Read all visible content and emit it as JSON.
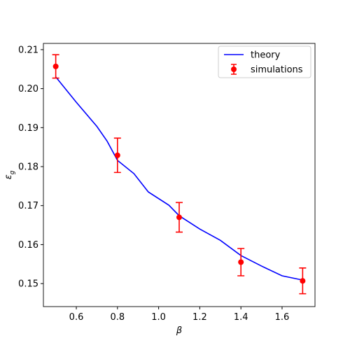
{
  "chart_data": {
    "type": "line-errorbar",
    "xlabel": "β",
    "ylabel": "ε",
    "ylabel_sub": "g",
    "xlim": [
      0.44,
      1.76
    ],
    "ylim": [
      0.1441,
      0.2116
    ],
    "xticks": [
      0.6,
      0.8,
      {
        "value": 1.0,
        "label": "1.0"
      },
      1.2,
      1.4,
      1.6
    ],
    "yticks": [
      0.15,
      0.16,
      0.17,
      0.18,
      0.19,
      {
        "value": 0.2,
        "label": "0.20"
      },
      0.21
    ],
    "legend": "upper right",
    "series": [
      {
        "name": "theory",
        "kind": "line",
        "color": "#0000ff",
        "x": [
          0.5,
          0.6,
          0.7,
          0.75,
          0.8,
          0.88,
          0.95,
          1.05,
          1.1,
          1.2,
          1.3,
          1.4,
          1.5,
          1.6,
          1.7
        ],
        "values": [
          0.203,
          0.1965,
          0.1903,
          0.1865,
          0.1816,
          0.1782,
          0.1735,
          0.1701,
          0.1674,
          0.164,
          0.1611,
          0.1572,
          0.1545,
          0.152,
          0.1509
        ]
      },
      {
        "name": "simulations",
        "kind": "errorbar",
        "color": "#ff0000",
        "x": [
          0.5,
          0.8,
          1.1,
          1.4,
          1.7
        ],
        "values": [
          0.2057,
          0.1829,
          0.167,
          0.1555,
          0.1507
        ],
        "errors": [
          0.003,
          0.0044,
          0.0038,
          0.0035,
          0.0033
        ]
      }
    ]
  }
}
